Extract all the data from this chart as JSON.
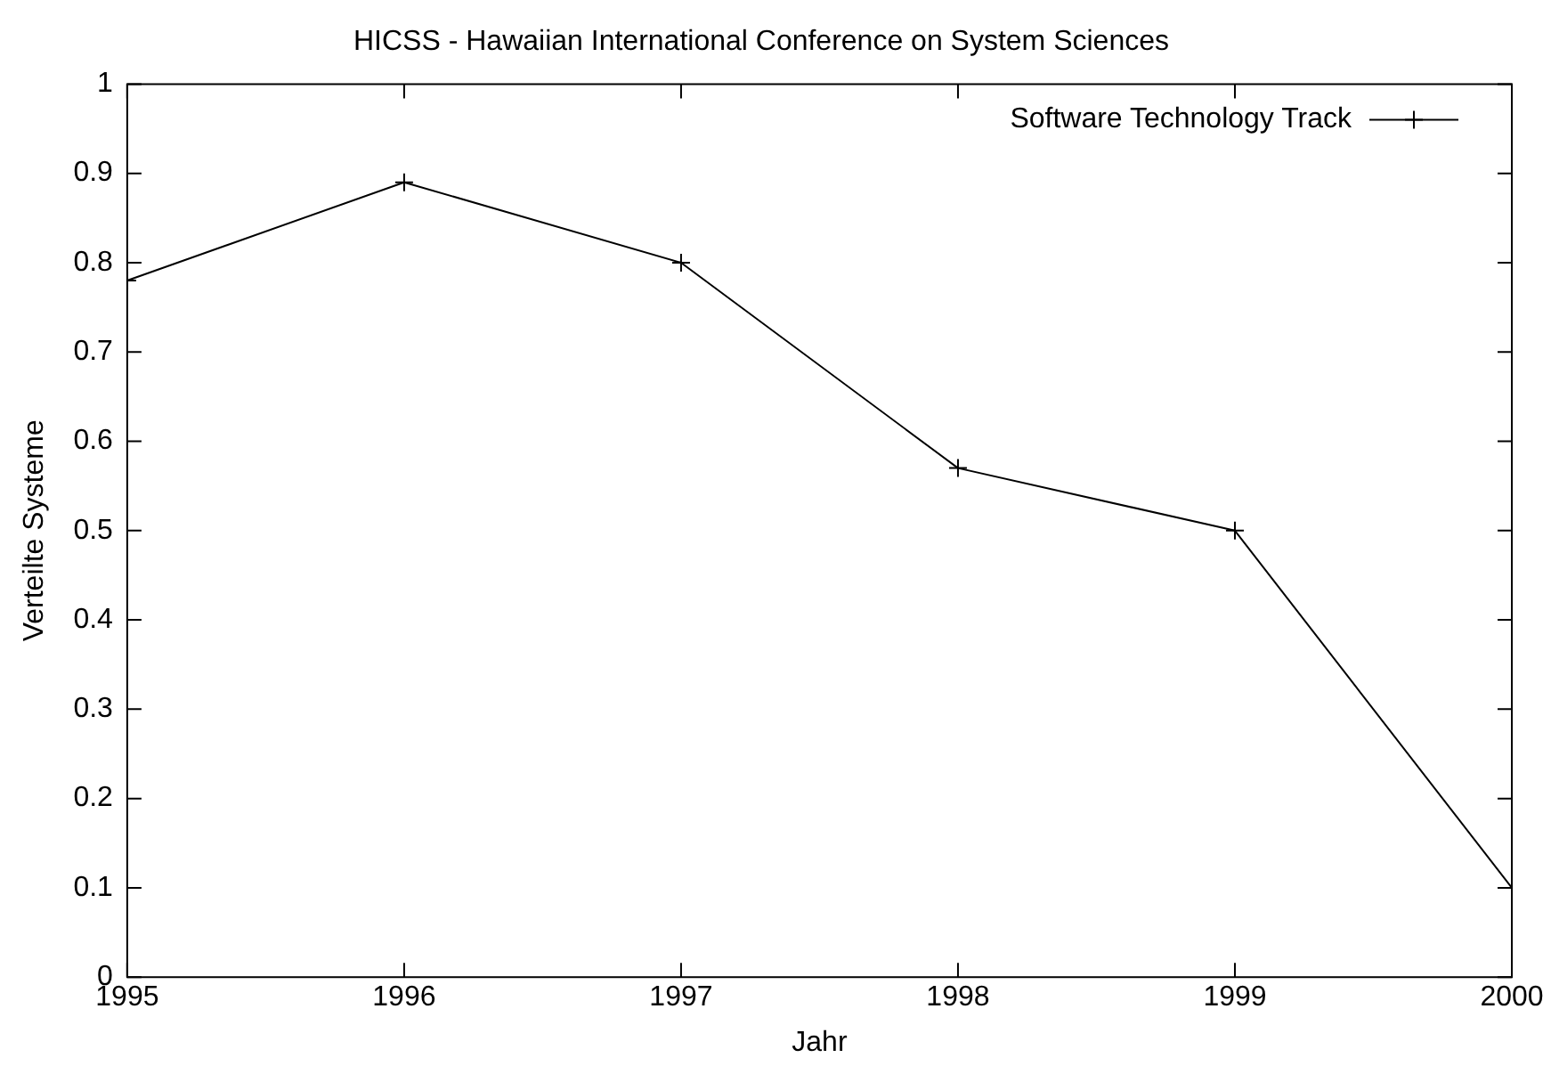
{
  "chart_data": {
    "type": "line",
    "title": "HICSS - Hawaiian International Conference on System Sciences",
    "xlabel": "Jahr",
    "ylabel": "Verteilte Systeme",
    "x": [
      1995,
      1996,
      1997,
      1998,
      1999,
      2000
    ],
    "series": [
      {
        "name": "Software Technology Track",
        "color": "#000000",
        "values": [
          0.78,
          0.89,
          0.8,
          0.57,
          0.5,
          0.1
        ]
      }
    ],
    "xlim": [
      1995,
      2000
    ],
    "xticks": [
      1995,
      1996,
      1997,
      1998,
      1999,
      2000
    ],
    "ylim": [
      0,
      1
    ],
    "yticks": [
      0,
      0.1,
      0.2,
      0.3,
      0.4,
      0.5,
      0.6,
      0.7,
      0.8,
      0.9,
      1
    ],
    "grid": false,
    "legend": "top right",
    "marker": "cross",
    "line_style": "solid"
  }
}
